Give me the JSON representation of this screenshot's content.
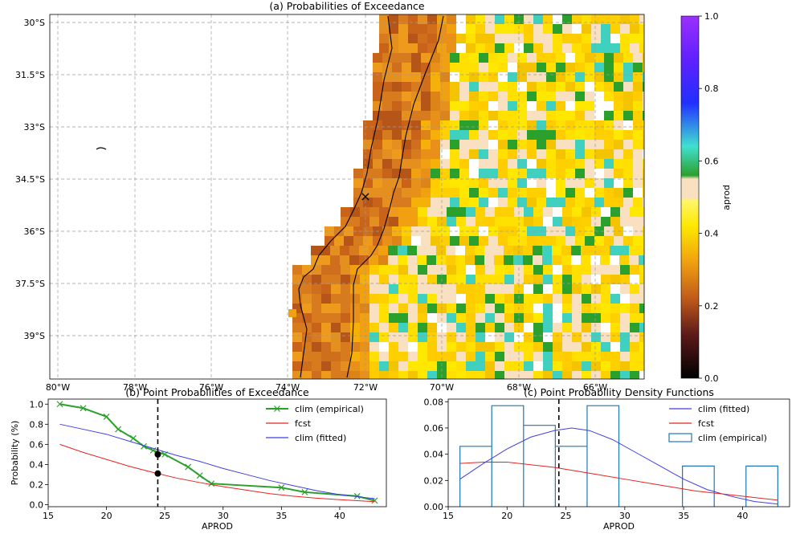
{
  "map": {
    "title": "(a) Probabilities of Exceedance",
    "lat_labels": [
      "30°S",
      "31.5°S",
      "33°S",
      "34.5°S",
      "36°S",
      "37.5°S",
      "39°S"
    ],
    "lon_labels": [
      "80°W",
      "78°W",
      "76°W",
      "74°W",
      "72°W",
      "70°W",
      "68°W",
      "66°W"
    ],
    "marker_symbol": "×",
    "marker_color": "#e8231f"
  },
  "colorbar": {
    "label": "aprod",
    "ticks": [
      "0.0",
      "0.2",
      "0.4",
      "0.6",
      "0.8",
      "1.0"
    ]
  },
  "chart_data": [
    {
      "type": "line",
      "title": "(b) Point Probabilities of Exceedance",
      "xlabel": "APROD",
      "ylabel": "Probability (%)",
      "xlim": [
        15,
        44
      ],
      "ylim": [
        -0.02,
        1.05
      ],
      "x_ticks": [
        "15",
        "20",
        "25",
        "30",
        "35",
        "40"
      ],
      "y_ticks": [
        "0.0",
        "0.2",
        "0.4",
        "0.6",
        "0.8",
        "1.0"
      ],
      "legend_position": "upper-right",
      "series": [
        {
          "name": "clim (empirical)",
          "color": "#2ca02c",
          "marker": "x",
          "x": [
            16,
            18,
            20,
            21,
            22.3,
            23.2,
            24,
            25,
            27,
            28,
            29,
            35,
            37,
            41.5,
            43
          ],
          "y": [
            1.0,
            0.96,
            0.875,
            0.75,
            0.66,
            0.58,
            0.54,
            0.5,
            0.375,
            0.29,
            0.21,
            0.17,
            0.125,
            0.085,
            0.04
          ]
        },
        {
          "name": "fcst",
          "color": "#e8231f",
          "x": [
            16,
            18,
            20,
            22,
            24,
            26,
            28,
            30,
            32,
            34,
            36,
            38,
            40,
            43
          ],
          "y": [
            0.6,
            0.52,
            0.45,
            0.38,
            0.32,
            0.265,
            0.22,
            0.18,
            0.145,
            0.11,
            0.085,
            0.065,
            0.05,
            0.03
          ]
        },
        {
          "name": "clim (fitted)",
          "color": "#3f3fe8",
          "x": [
            16,
            18,
            20,
            22,
            24,
            26,
            28,
            30,
            32,
            34,
            36,
            38,
            40,
            43
          ],
          "y": [
            0.8,
            0.75,
            0.7,
            0.63,
            0.56,
            0.49,
            0.43,
            0.36,
            0.3,
            0.24,
            0.19,
            0.14,
            0.1,
            0.06
          ]
        }
      ],
      "vline_x": 24.4,
      "points": [
        {
          "x": 24.4,
          "y": 0.5
        },
        {
          "x": 24.4,
          "y": 0.31
        }
      ]
    },
    {
      "type": "line",
      "title": "(c) Point Probability Density Functions",
      "xlabel": "APROD",
      "xlim": [
        15,
        44
      ],
      "ylim": [
        0,
        0.082
      ],
      "x_ticks": [
        "15",
        "20",
        "25",
        "30",
        "35",
        "40"
      ],
      "y_ticks": [
        "0.00",
        "0.02",
        "0.04",
        "0.06",
        "0.08"
      ],
      "legend_position": "upper-right",
      "series": [
        {
          "name": "clim (fitted)",
          "color": "#3f3fe8",
          "x": [
            16,
            18,
            20,
            22,
            24,
            25.5,
            27,
            29,
            31,
            33,
            35,
            37,
            39,
            41,
            43
          ],
          "y": [
            0.021,
            0.033,
            0.044,
            0.053,
            0.058,
            0.06,
            0.058,
            0.051,
            0.041,
            0.031,
            0.021,
            0.013,
            0.008,
            0.004,
            0.002
          ]
        },
        {
          "name": "fcst",
          "color": "#e8231f",
          "x": [
            16,
            18,
            20,
            22,
            24,
            26,
            28,
            30,
            32,
            34,
            36,
            38,
            40,
            43
          ],
          "y": [
            0.033,
            0.034,
            0.034,
            0.032,
            0.03,
            0.027,
            0.024,
            0.021,
            0.018,
            0.015,
            0.012,
            0.01,
            0.008,
            0.005
          ]
        }
      ],
      "histogram": {
        "name": "clim (empirical)",
        "color": "#1f77b4",
        "edges": [
          16,
          18.7,
          21.4,
          24.1,
          26.8,
          29.5,
          32.2,
          34.9,
          37.6,
          40.3,
          43
        ],
        "values": [
          0.046,
          0.077,
          0.062,
          0.046,
          0.077,
          0,
          0,
          0.031,
          0,
          0.031
        ]
      },
      "vline_x": 24.4
    }
  ]
}
